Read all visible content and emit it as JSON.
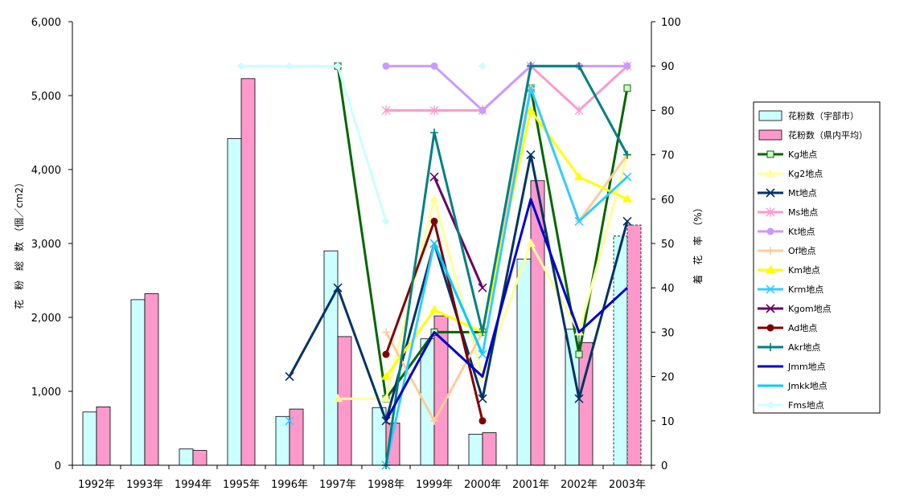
{
  "chart_data": {
    "type": "bar",
    "categories": [
      "1992年",
      "1993年",
      "1994年",
      "1995年",
      "1996年",
      "1997年",
      "1998年",
      "1999年",
      "2000年",
      "2001年",
      "2002年",
      "2003年"
    ],
    "ylabel": "花　粉　総　数　（個／cm2）",
    "y2label": "着　花　率　（%）",
    "ylim": [
      0,
      6000
    ],
    "y2lim": [
      0,
      100
    ],
    "yticks": [
      "0",
      "1,000",
      "2,000",
      "3,000",
      "4,000",
      "5,000",
      "6,000"
    ],
    "y2ticks": [
      "0",
      "10",
      "20",
      "30",
      "40",
      "50",
      "60",
      "70",
      "80",
      "90",
      "100"
    ],
    "legend_position": "right",
    "bar_series": [
      {
        "name": "花粉数（宇部市）",
        "color": "#ccffff",
        "values": [
          720,
          2240,
          220,
          4420,
          660,
          2900,
          780,
          1710,
          420,
          2790,
          1840,
          3100
        ],
        "dashed_last": true
      },
      {
        "name": "花粉数（県内平均）",
        "color": "#ff99cc",
        "values": [
          790,
          2320,
          200,
          5230,
          760,
          1740,
          570,
          2020,
          440,
          3850,
          1660,
          3250
        ],
        "dashed_last": true
      }
    ],
    "line_series": [
      {
        "name": "Kg地点",
        "color": "#006600",
        "marker": "square",
        "values": [
          null,
          null,
          null,
          null,
          null,
          90,
          15,
          30,
          30,
          85,
          25,
          85
        ]
      },
      {
        "name": "Kg2地点",
        "color": "#ffff99",
        "marker": "triangle",
        "values": [
          null,
          null,
          null,
          null,
          null,
          15,
          15,
          60,
          20,
          50,
          30,
          70
        ]
      },
      {
        "name": "Mt地点",
        "color": "#003366",
        "marker": "x",
        "values": [
          null,
          null,
          null,
          null,
          20,
          40,
          10,
          50,
          15,
          70,
          15,
          55
        ]
      },
      {
        "name": "Ms地点",
        "color": "#ff99cc",
        "marker": "star",
        "values": [
          null,
          null,
          null,
          null,
          null,
          null,
          80,
          80,
          80,
          90,
          80,
          90
        ]
      },
      {
        "name": "Kt地点",
        "color": "#cc99ff",
        "marker": "circle",
        "values": [
          null,
          null,
          null,
          null,
          null,
          null,
          90,
          90,
          80,
          90,
          90,
          90
        ]
      },
      {
        "name": "Of地点",
        "color": "#ffcc99",
        "marker": "plus",
        "values": [
          null,
          null,
          null,
          null,
          null,
          null,
          30,
          10,
          30,
          85,
          55,
          70
        ]
      },
      {
        "name": "Km地点",
        "color": "#ffff00",
        "marker": "triangle",
        "values": [
          null,
          null,
          null,
          null,
          null,
          null,
          20,
          35,
          30,
          80,
          65,
          60
        ]
      },
      {
        "name": "Krm地点",
        "color": "#33ccff",
        "marker": "x",
        "values": [
          null,
          null,
          null,
          null,
          10,
          null,
          0,
          50,
          25,
          85,
          55,
          65
        ]
      },
      {
        "name": "Kgom地点",
        "color": "#660066",
        "marker": "x",
        "values": [
          null,
          null,
          null,
          null,
          null,
          null,
          null,
          65,
          40,
          null,
          null,
          null
        ]
      },
      {
        "name": "Ad地点",
        "color": "#800000",
        "marker": "circle",
        "values": [
          null,
          null,
          null,
          null,
          null,
          null,
          25,
          55,
          10,
          null,
          null,
          null
        ]
      },
      {
        "name": "Akr地点",
        "color": "#008080",
        "marker": "plus",
        "values": [
          null,
          null,
          null,
          null,
          null,
          null,
          0,
          75,
          30,
          90,
          90,
          70
        ]
      },
      {
        "name": "Jmm地点",
        "color": "#0000cc",
        "marker": "none",
        "values": [
          null,
          null,
          null,
          null,
          null,
          null,
          10,
          30,
          20,
          60,
          30,
          40
        ]
      },
      {
        "name": "Jmkk地点",
        "color": "#00ccff",
        "marker": "none",
        "values": [
          null,
          null,
          null,
          null,
          null,
          null,
          null,
          50,
          25,
          null,
          null,
          null
        ]
      },
      {
        "name": "Fms地点",
        "color": "#ccffff",
        "marker": "diamond",
        "values": [
          null,
          null,
          null,
          90,
          90,
          90,
          55,
          null,
          90,
          null,
          null,
          null
        ]
      }
    ]
  }
}
